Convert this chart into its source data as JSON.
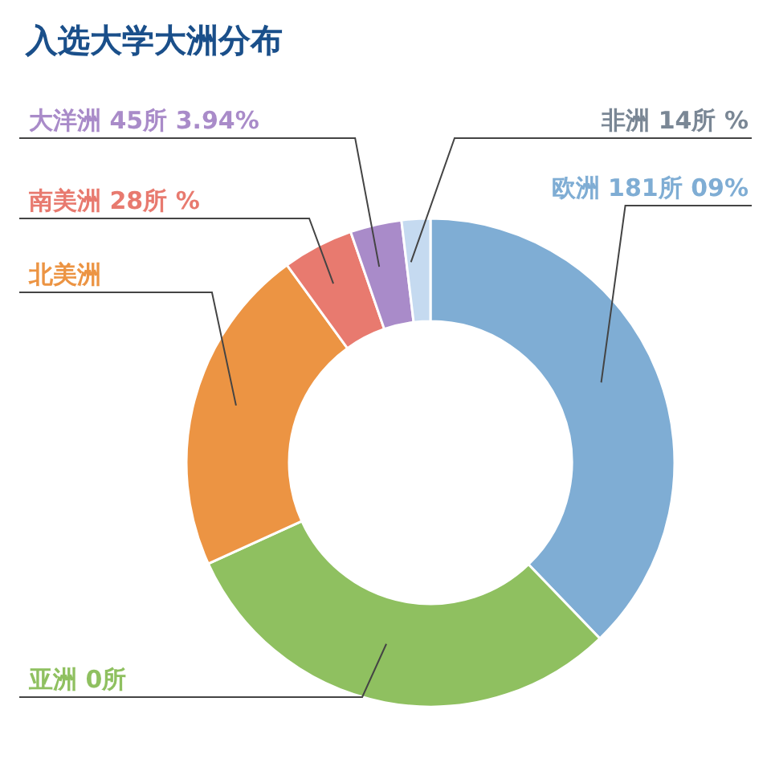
{
  "chart_data": {
    "type": "donut",
    "title": "入选大学大洲分布",
    "categories": [
      "欧洲 181所 09%",
      "亚洲 0所",
      "北美洲",
      "南美洲 28所 %",
      "大洋洲 45所 3.94%",
      "非洲 14所 %"
    ],
    "values": [
      37.8,
      30.4,
      21.8,
      4.7,
      3.4,
      1.9
    ],
    "colors": [
      "#7fadd4",
      "#8fc060",
      "#ec9443",
      "#e87a6f",
      "#a98bc9",
      "#c5daf0"
    ]
  }
}
